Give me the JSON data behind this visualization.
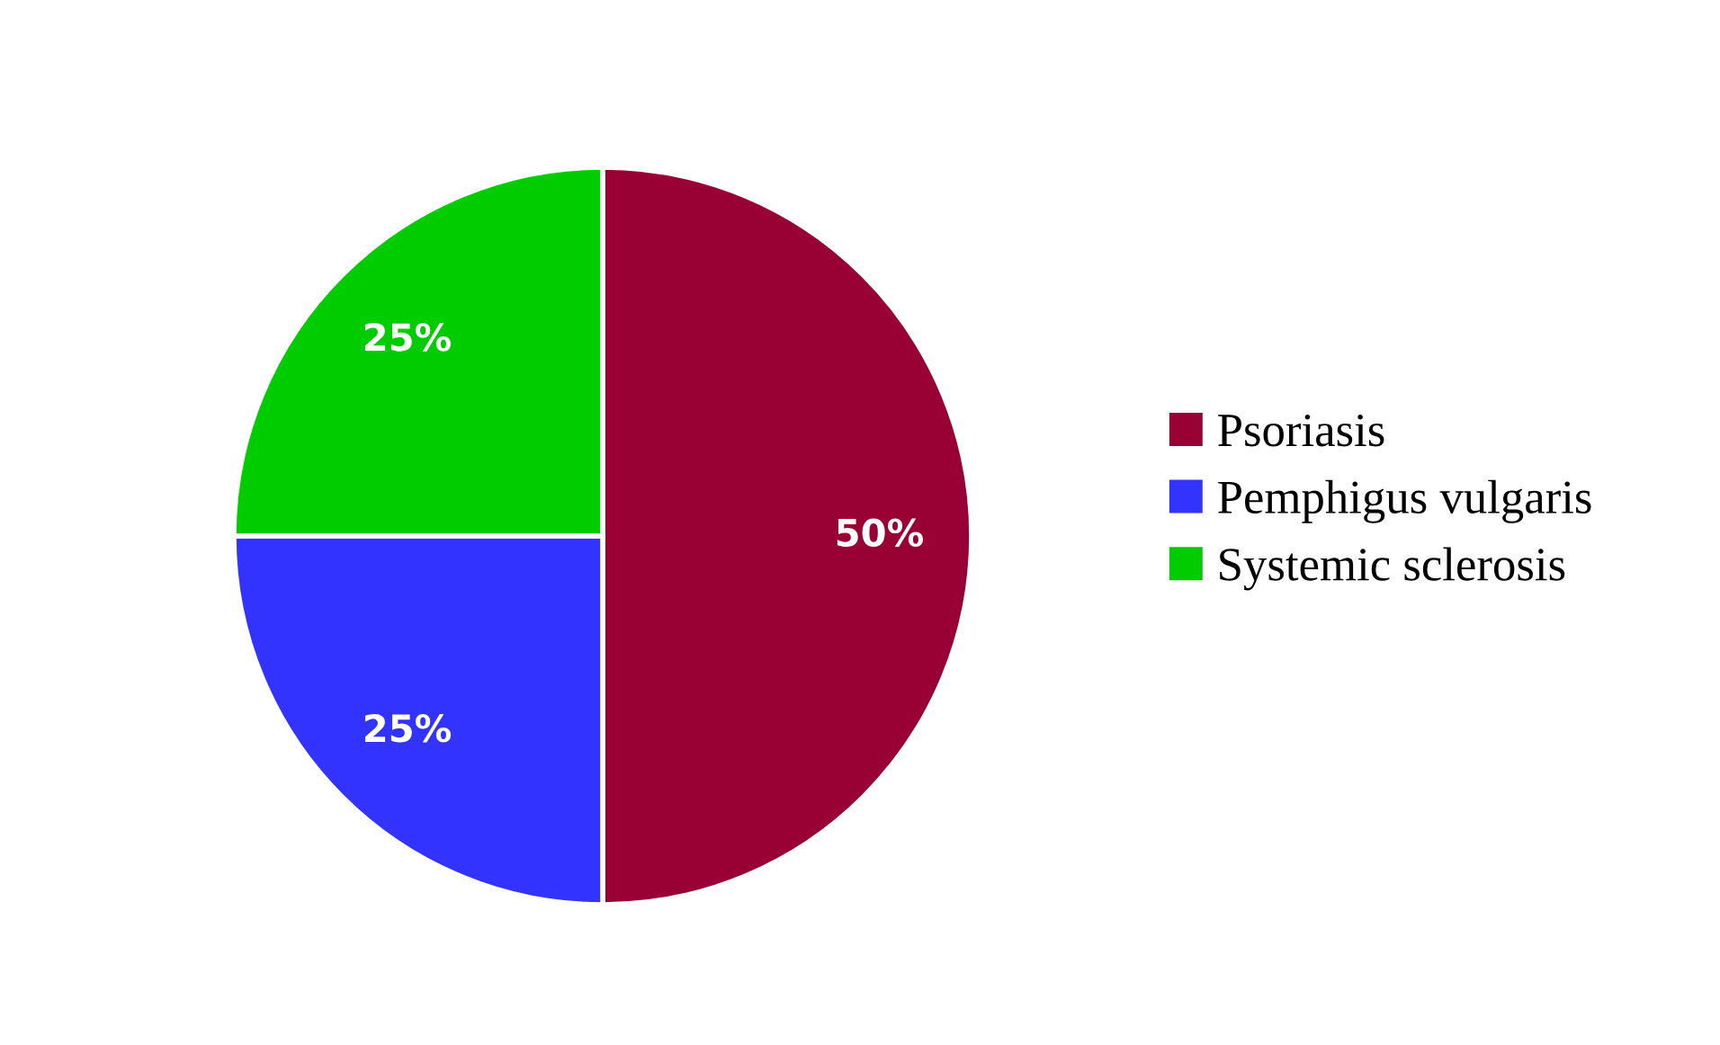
{
  "chart_data": {
    "type": "pie",
    "categories": [
      "Psoriasis",
      "Pemphigus vulgaris",
      "Systemic sclerosis"
    ],
    "values": [
      50,
      25,
      25
    ],
    "colors": [
      "#990033",
      "#3333ff",
      "#00cc00"
    ],
    "value_labels": [
      "50%",
      "25%",
      "25%"
    ],
    "legend": "right"
  }
}
